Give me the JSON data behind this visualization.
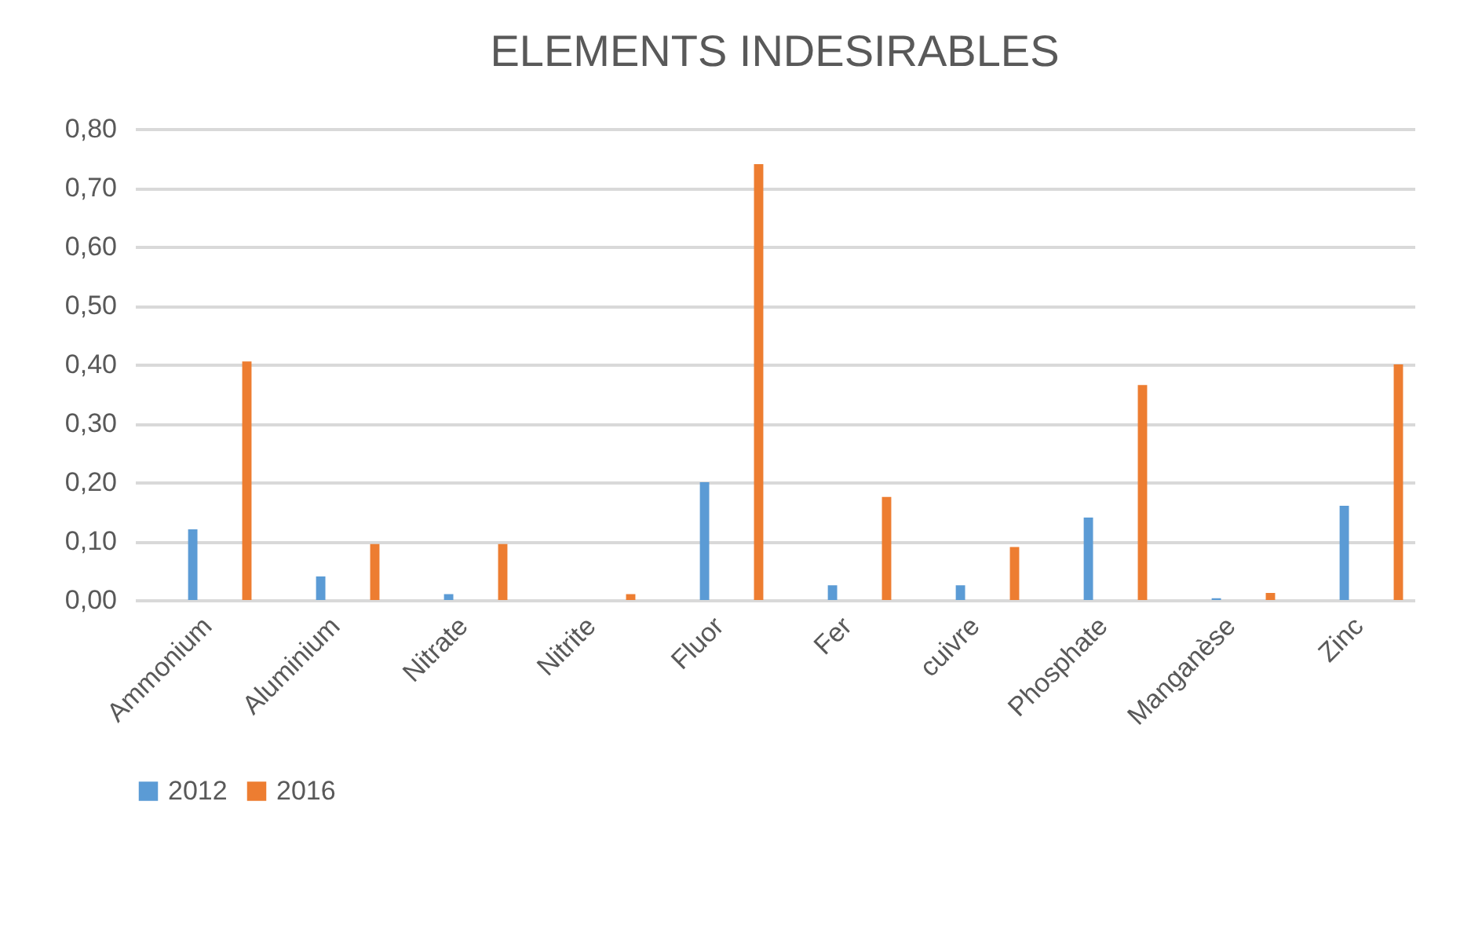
{
  "chart_data": {
    "type": "bar",
    "title": "ELEMENTS INDESIRABLES",
    "categories": [
      "Ammonium",
      "Aluminium",
      "Nitrate",
      "Nitrite",
      "Fluor",
      "Fer",
      "cuivre",
      "Phosphate",
      "Manganèse",
      "Zinc"
    ],
    "series": [
      {
        "name": "2012",
        "color": "#5b9bd5",
        "values": [
          0.12,
          0.04,
          0.01,
          0,
          0.2,
          0.025,
          0.025,
          0.14,
          0.003,
          0.16
        ]
      },
      {
        "name": "2016",
        "color": "#ed7d31",
        "values": [
          0.405,
          0.095,
          0.095,
          0.01,
          0.74,
          0.175,
          0.09,
          0.365,
          0.012,
          0.4
        ]
      }
    ],
    "ylim": [
      0,
      0.8
    ],
    "yticks": [
      {
        "value": 0,
        "label": "0,00"
      },
      {
        "value": 0.1,
        "label": "0,10"
      },
      {
        "value": 0.2,
        "label": "0,20"
      },
      {
        "value": 0.3,
        "label": "0,30"
      },
      {
        "value": 0.4,
        "label": "0,40"
      },
      {
        "value": 0.5,
        "label": "0,50"
      },
      {
        "value": 0.6,
        "label": "0,60"
      },
      {
        "value": 0.7,
        "label": "0,70"
      },
      {
        "value": 0.8,
        "label": "0,80"
      }
    ],
    "grid": "y",
    "legend": "bottom"
  }
}
